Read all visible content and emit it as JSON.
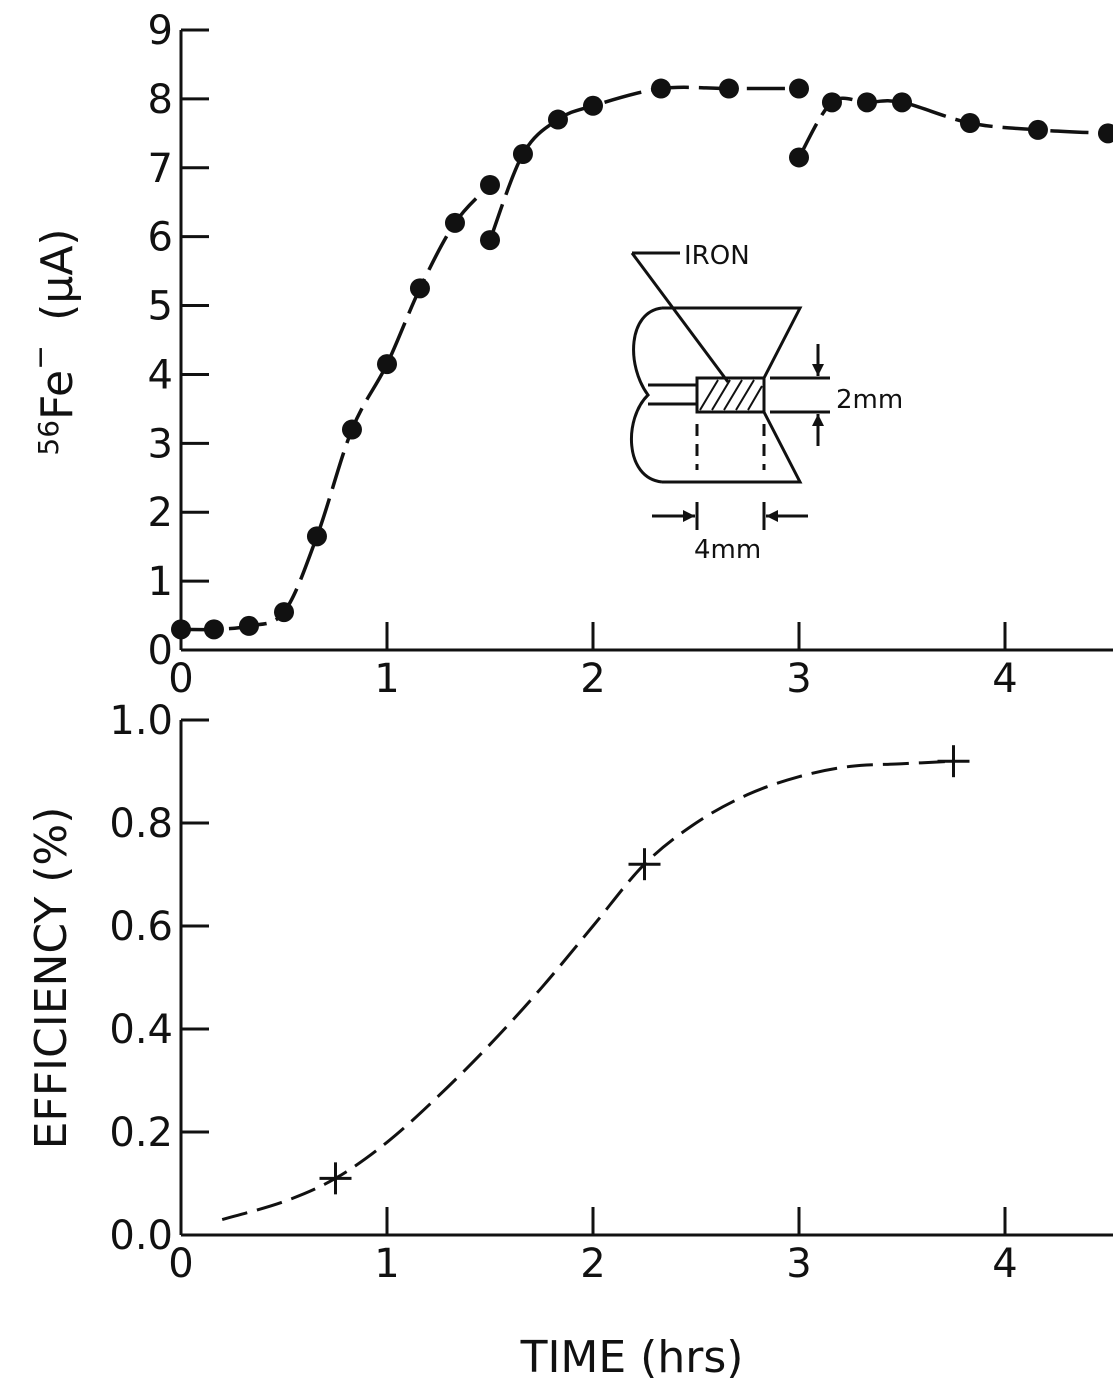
{
  "chart_data": [
    {
      "type": "scatter",
      "title": "",
      "xlabel": "",
      "ylabel_super": "56",
      "ylabel_main": "Fe",
      "ylabel_sup2": "−",
      "ylabel_unit": "(µA)",
      "xlim": [
        0,
        4.5
      ],
      "ylim": [
        0,
        9
      ],
      "xticks": [
        "0",
        "1",
        "2",
        "3",
        "4"
      ],
      "yticks": [
        "0",
        "1",
        "2",
        "3",
        "4",
        "5",
        "6",
        "7",
        "8",
        "9"
      ],
      "grid": false,
      "series": [
        {
          "marker": "filled-circle",
          "line": "dashed",
          "x": [
            0.0,
            0.16,
            0.33,
            0.5,
            0.66,
            0.83,
            1.0,
            1.16,
            1.33,
            1.5,
            1.5,
            1.66,
            1.83,
            2.0,
            2.33,
            2.66,
            3.0,
            3.0,
            3.16,
            3.33,
            3.5,
            3.83,
            4.16,
            4.5
          ],
          "y": [
            0.3,
            0.3,
            0.35,
            0.55,
            1.65,
            3.2,
            4.15,
            5.25,
            6.2,
            6.75,
            5.95,
            7.2,
            7.7,
            7.9,
            8.15,
            8.15,
            8.15,
            7.15,
            7.95,
            7.95,
            7.95,
            7.65,
            7.55,
            7.5
          ]
        }
      ],
      "inset": {
        "label_material": "IRON",
        "label_gap": "2mm",
        "label_width": "4mm"
      }
    },
    {
      "type": "line",
      "title": "",
      "xlabel": "TIME (hrs)",
      "ylabel": "EFFICIENCY (%)",
      "xlim": [
        0,
        4.5
      ],
      "ylim": [
        0,
        1.0
      ],
      "xticks": [
        "0",
        "1",
        "2",
        "3",
        "4"
      ],
      "yticks": [
        "0.0",
        "0.2",
        "0.4",
        "0.6",
        "0.8",
        "1.0"
      ],
      "grid": false,
      "series": [
        {
          "marker": "plus",
          "x": [
            0.75,
            2.25,
            3.75
          ],
          "y": [
            0.11,
            0.72,
            0.92
          ]
        }
      ],
      "curve": {
        "line": "dashed",
        "x": [
          0.2,
          0.5,
          0.75,
          1.0,
          1.25,
          1.5,
          1.75,
          2.0,
          2.25,
          2.5,
          2.75,
          3.0,
          3.25,
          3.5,
          3.75
        ],
        "y": [
          0.03,
          0.065,
          0.11,
          0.18,
          0.27,
          0.37,
          0.48,
          0.6,
          0.72,
          0.8,
          0.855,
          0.89,
          0.91,
          0.915,
          0.92
        ]
      }
    }
  ]
}
